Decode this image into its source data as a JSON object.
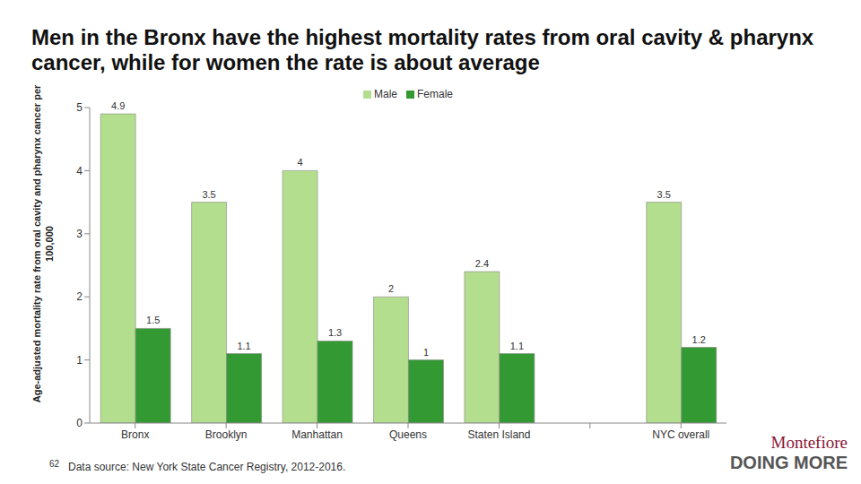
{
  "chart_data": {
    "type": "bar",
    "title": "Men in the Bronx have the highest mortality rates from oral cavity & pharynx cancer, while for women the rate is about average",
    "y_label": "Age-adjusted mortality rate from oral cavity and pharynx cancer per 100,000",
    "categories": [
      "Bronx",
      "Brooklyn",
      "Manhattan",
      "Queens",
      "Staten Island",
      null,
      "NYC overall"
    ],
    "series": [
      {
        "name": "Male",
        "color": "#b3de8e",
        "values": [
          4.9,
          3.5,
          4.0,
          2.0,
          2.4,
          null,
          3.5
        ]
      },
      {
        "name": "Female",
        "color": "#339933",
        "values": [
          1.5,
          1.1,
          1.3,
          1.0,
          1.1,
          null,
          1.2
        ]
      }
    ],
    "ylim": [
      0,
      5
    ],
    "yticks": [
      0,
      1,
      2,
      3,
      4,
      5
    ],
    "grid": false,
    "legend": "top",
    "data_labels": true,
    "footer": {
      "page": "62",
      "source": "Data source: New York State Cancer Registry, 2012-2016.",
      "logo": [
        "Montefiore",
        "DOING MORE"
      ]
    }
  }
}
